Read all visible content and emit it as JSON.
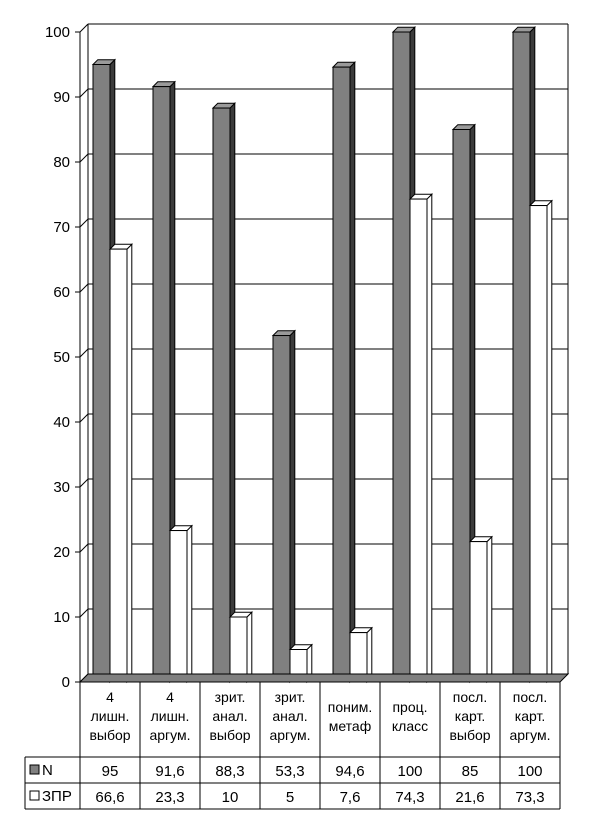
{
  "chart_data": {
    "type": "bar",
    "style": "3d-clustered-column-with-data-table",
    "categories": [
      [
        "4",
        "лишн.",
        "выбор"
      ],
      [
        "4",
        "лишн.",
        "аргум."
      ],
      [
        "зрит.",
        "анал.",
        "выбор"
      ],
      [
        "зрит.",
        "анал.",
        "аргум."
      ],
      [
        "поним.",
        "метаф"
      ],
      [
        "проц.",
        "класс"
      ],
      [
        "посл.",
        "карт.",
        "выбор"
      ],
      [
        "посл.",
        "карт.",
        "аргум."
      ]
    ],
    "series": [
      {
        "name": "N",
        "color": "#808080",
        "values": [
          95,
          91.6,
          88.3,
          53.3,
          94.6,
          100,
          85,
          100
        ],
        "labels": [
          "95",
          "91,6",
          "88,3",
          "53,3",
          "94,6",
          "100",
          "85",
          "100"
        ]
      },
      {
        "name": "ЗПР",
        "color": "#ffffff",
        "values": [
          66.6,
          23.3,
          10,
          5,
          7.6,
          74.3,
          21.6,
          73.3
        ],
        "labels": [
          "66,6",
          "23,3",
          "10",
          "5",
          "7,6",
          "74,3",
          "21,6",
          "73,3"
        ]
      }
    ],
    "ylim": [
      0,
      100
    ],
    "yticks": [
      0,
      10,
      20,
      30,
      40,
      50,
      60,
      70,
      80,
      90,
      100
    ],
    "grid": true,
    "legend": "data-table"
  }
}
